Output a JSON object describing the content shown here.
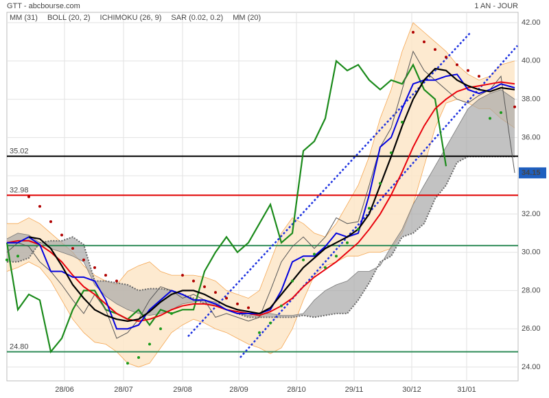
{
  "header": {
    "title": "GTT - abcbourse.com",
    "period": "1 AN - JOUR"
  },
  "chart_data": {
    "type": "stock",
    "x": [
      0,
      4,
      8,
      12,
      16,
      20,
      24,
      28,
      32,
      36,
      40,
      44,
      48,
      52,
      56,
      60,
      64,
      68,
      72,
      76,
      80,
      84,
      88,
      92,
      96,
      100,
      104,
      108,
      112,
      116,
      120,
      124,
      128,
      132,
      136,
      140,
      144,
      148,
      152,
      156,
      160,
      164,
      168,
      172,
      176,
      180,
      185
    ],
    "xlim": [
      0,
      186.25
    ],
    "xticks": [
      {
        "value": 21,
        "label": "28/06"
      },
      {
        "value": 42.5,
        "label": "28/07"
      },
      {
        "value": 64,
        "label": "29/08"
      },
      {
        "value": 84.5,
        "label": "28/09"
      },
      {
        "value": 105.5,
        "label": "28/10"
      },
      {
        "value": 126.5,
        "label": "29/11"
      },
      {
        "value": 147.5,
        "label": "30/12"
      },
      {
        "value": 167.5,
        "label": "31/01"
      }
    ],
    "ylim": [
      23.28,
      42.54
    ],
    "yticks": [
      {
        "value": 24,
        "label": "24.00"
      },
      {
        "value": 26,
        "label": "26.00"
      },
      {
        "value": 28,
        "label": "28.00"
      },
      {
        "value": 30,
        "label": "30.00"
      },
      {
        "value": 32,
        "label": "32.00"
      },
      {
        "value": 34,
        "label": "34.00"
      },
      {
        "value": 36,
        "label": "36.00"
      },
      {
        "value": 38,
        "label": "38.00"
      },
      {
        "value": 40,
        "label": "40.00"
      },
      {
        "value": 42,
        "label": "42.00"
      }
    ],
    "grid": true,
    "price": {
      "color": "#555555",
      "tag_color": "#1f5fbf",
      "close": [
        30.0,
        30.5,
        30.3,
        29.5,
        29.0,
        28.3,
        27.5,
        26.8,
        27.8,
        27.0,
        25.5,
        25.8,
        26.5,
        27.5,
        28.2,
        28.0,
        27.6,
        27.8,
        27.5,
        26.6,
        26.8,
        26.6,
        26.4,
        26.6,
        28.0,
        29.5,
        30.3,
        30.8,
        30.2,
        30.8,
        31.8,
        31.5,
        31.6,
        33.5,
        35.5,
        36.5,
        38.5,
        40.5,
        39.5,
        39.0,
        38.5,
        38.0,
        37.8,
        38.2,
        38.5,
        39.2,
        34.15
      ]
    },
    "indicators": {
      "mm31": {
        "name": "MM (31)",
        "color": "#e8000b",
        "values": [
          30.5,
          30.6,
          30.6,
          30.4,
          30.0,
          29.5,
          28.8,
          28.2,
          27.8,
          27.3,
          26.8,
          26.5,
          26.4,
          26.5,
          26.7,
          27.0,
          27.2,
          27.3,
          27.3,
          27.2,
          27.0,
          26.9,
          26.8,
          26.7,
          26.9,
          27.2,
          27.6,
          28.2,
          28.7,
          29.1,
          29.5,
          30.0,
          30.5,
          31.2,
          32.0,
          33.0,
          34.2,
          35.5,
          36.6,
          37.5,
          38.0,
          38.4,
          38.6,
          38.7,
          38.8,
          38.9,
          38.8
        ]
      },
      "boll": {
        "name": "BOLL (20, 2)",
        "color": "#f5a651",
        "fill": "#fde6c8",
        "upper": [
          31.5,
          31.5,
          31.8,
          31.5,
          31.0,
          30.5,
          30.0,
          29.3,
          28.8,
          28.5,
          28.3,
          29.0,
          29.3,
          29.5,
          29.0,
          28.8,
          28.8,
          28.8,
          28.7,
          28.5,
          28.0,
          27.8,
          27.6,
          28.0,
          29.5,
          31.0,
          31.8,
          31.5,
          31.0,
          30.8,
          31.5,
          32.5,
          33.5,
          35.0,
          37.0,
          38.5,
          40.5,
          42.0,
          41.5,
          41.0,
          40.5,
          39.8,
          39.3,
          39.0,
          39.2,
          39.8,
          40.0
        ],
        "lower": [
          29.0,
          29.2,
          29.5,
          29.2,
          28.5,
          27.5,
          26.5,
          25.8,
          25.3,
          25.2,
          24.8,
          24.2,
          24.0,
          24.2,
          25.0,
          25.8,
          26.2,
          26.5,
          26.3,
          26.0,
          25.8,
          25.5,
          25.2,
          25.0,
          24.7,
          25.0,
          26.0,
          27.5,
          28.8,
          29.3,
          29.5,
          29.8,
          29.8,
          30.0,
          30.0,
          30.2,
          31.0,
          32.5,
          34.5,
          36.5,
          37.8,
          38.0,
          37.8,
          37.5,
          37.5,
          37.0,
          36.5
        ]
      },
      "ichimoku": {
        "name": "ICHIMOKU (26, 9)",
        "color": "#0000e0",
        "values": [
          30.5,
          30.5,
          30.8,
          30.4,
          29.0,
          29.0,
          28.7,
          28.7,
          28.5,
          27.5,
          26.0,
          26.0,
          26.2,
          27.0,
          27.5,
          28.0,
          27.8,
          27.5,
          27.5,
          27.3,
          27.0,
          26.8,
          26.8,
          26.8,
          27.0,
          28.0,
          29.5,
          29.8,
          29.8,
          30.3,
          31.0,
          30.8,
          31.0,
          33.0,
          35.5,
          36.0,
          37.5,
          38.8,
          39.0,
          39.0,
          39.2,
          39.3,
          38.5,
          38.3,
          38.5,
          38.8,
          38.6
        ],
        "chikou_color": "#1a8a1a",
        "chikou": [
          30.5,
          27.0,
          27.8,
          27.5,
          24.8,
          25.5,
          27.0,
          28.0,
          28.0,
          27.0,
          26.8,
          26.5,
          27.0,
          26.2,
          27.0,
          26.8,
          27.0,
          27.0,
          29.0,
          30.0,
          30.8,
          30.0,
          30.5,
          31.5,
          32.5,
          30.5,
          31.0,
          35.3,
          35.8,
          37.0,
          40.0,
          39.5,
          39.8,
          39.0,
          38.5,
          39.0,
          38.8,
          39.8,
          38.5,
          38.0,
          34.5,
          null,
          null,
          null,
          null,
          null,
          null
        ],
        "cloud_color": "#a8a8a8",
        "span_a": [
          30.7,
          31.0,
          30.9,
          30.5,
          30.2,
          30.0,
          29.8,
          29.5,
          28.3,
          27.7,
          27.3,
          27.0,
          26.8,
          26.7,
          26.8,
          27.0,
          27.3,
          27.4,
          27.5,
          27.4,
          27.0,
          26.8,
          26.7,
          26.8,
          26.8,
          26.7,
          26.7,
          26.8,
          27.5,
          28.0,
          28.3,
          28.5,
          29.0,
          29.0,
          29.3,
          30.3,
          31.2,
          32.5,
          33.5,
          34.5,
          35.5,
          36.5,
          37.5,
          38.0,
          38.3,
          38.5,
          38.0
        ],
        "span_b": [
          29.5,
          29.5,
          29.7,
          30.5,
          30.6,
          30.6,
          30.8,
          30.4,
          28.5,
          28.5,
          28.4,
          28.3,
          28.0,
          28.1,
          28.1,
          28.0,
          27.8,
          27.6,
          27.3,
          27.2,
          27.0,
          26.8,
          26.6,
          26.6,
          26.6,
          26.6,
          26.6,
          26.7,
          26.6,
          26.7,
          26.8,
          26.8,
          27.5,
          28.4,
          29.5,
          29.8,
          30.8,
          31.0,
          31.5,
          32.8,
          33.5,
          34.7,
          35.0,
          35.0,
          35.0,
          35.0,
          35.0
        ]
      },
      "sar": {
        "name": "SAR (0.02, 0.2)",
        "color": "#b00000",
        "color_below": "#1a9a1a",
        "values": [
          29.6,
          29.8,
          32.9,
          32.4,
          31.6,
          30.9,
          30.2,
          29.6,
          29.2,
          28.8,
          28.5,
          24.2,
          24.5,
          25.2,
          26.0,
          26.8,
          28.8,
          28.5,
          28.2,
          27.9,
          27.6,
          27.3,
          27.1,
          25.8,
          26.3,
          27.2,
          28.5,
          29.6,
          29.9,
          29.2,
          29.8,
          30.5,
          31.2,
          32.3,
          33.6,
          35.2,
          36.8,
          41.5,
          41.0,
          40.6,
          40.2,
          39.8,
          39.5,
          39.2,
          37.0,
          37.3,
          37.6
        ]
      },
      "mm20": {
        "name": "MM (20)",
        "color": "#000000",
        "values": [
          null,
          null,
          30.8,
          30.7,
          30.2,
          29.3,
          28.3,
          27.6,
          27.0,
          26.7,
          26.5,
          26.4,
          26.5,
          26.9,
          27.4,
          27.8,
          28.0,
          28.0,
          27.8,
          27.5,
          27.2,
          27.0,
          26.9,
          26.8,
          27.1,
          27.8,
          28.5,
          29.2,
          29.7,
          30.2,
          30.5,
          30.8,
          31.2,
          32.0,
          33.5,
          35.0,
          36.6,
          38.0,
          39.0,
          39.6,
          39.5,
          39.0,
          38.7,
          38.5,
          38.4,
          38.6,
          38.5
        ]
      }
    },
    "levels": [
      {
        "value": 35.02,
        "color": "#000000"
      },
      {
        "value": 32.98,
        "color": "#e00000"
      },
      {
        "value": 30.35,
        "color": "#2e8b57"
      },
      {
        "value": 24.8,
        "label": "24.80",
        "color": "#2e8b57"
      }
    ],
    "channel": {
      "color": "#1a2fe0",
      "lines": [
        {
          "x": [
            66,
            169
          ],
          "values": [
            25.6,
            41.5
          ]
        },
        {
          "x": [
            85,
            186
          ],
          "values": [
            24.5,
            40.8
          ]
        }
      ]
    }
  }
}
